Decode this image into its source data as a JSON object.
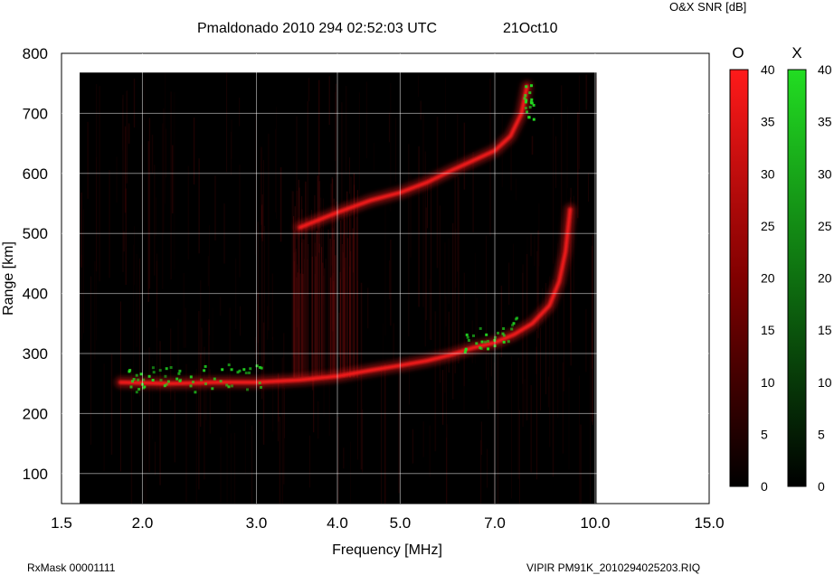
{
  "header": {
    "title": "Pmaldonado 2010 294 02:52:03 UTC",
    "date": "21Oct10",
    "snr_label": "O&X SNR [dB]"
  },
  "footer": {
    "left": "RxMask 00001111",
    "right": "VIPIR  PM91K_2010294025203.RIQ"
  },
  "colors": {
    "o_mode": "#ff1a1a",
    "x_mode": "#22dd22",
    "background": "#000000",
    "grid": "#ffffff"
  },
  "chart_data": {
    "type": "heatmap",
    "title": "Pmaldonado 2010 294 02:52:03 UTC",
    "xlabel": "Frequency [MHz]",
    "ylabel": "Range [km]",
    "x_scale": "log",
    "xlim": [
      1.5,
      15.0
    ],
    "ylim": [
      50,
      800
    ],
    "x_ticks": [
      1.5,
      2.0,
      3.0,
      4.0,
      5.0,
      7.0,
      10.0,
      15.0
    ],
    "x_tick_labels": [
      "1.5",
      "2.0",
      "3.0",
      "4.0",
      "5.0",
      "7.0",
      "10.0",
      "15.0"
    ],
    "y_ticks": [
      100,
      200,
      300,
      400,
      500,
      600,
      700,
      800
    ],
    "y_tick_labels": [
      "100",
      "200",
      "300",
      "400",
      "500",
      "600",
      "700",
      "800"
    ],
    "grid": true,
    "data_extent": {
      "freq": [
        1.6,
        10.05
      ],
      "range": [
        50,
        768
      ]
    },
    "colorbars": [
      {
        "name": "O",
        "color": "#ff1a1a",
        "range": [
          0,
          40
        ],
        "ticks": [
          0,
          5,
          10,
          15,
          20,
          25,
          30,
          35,
          40
        ]
      },
      {
        "name": "X",
        "color": "#22dd22",
        "range": [
          0,
          40
        ],
        "ticks": [
          0,
          5,
          10,
          15,
          20,
          25,
          30,
          35,
          40
        ]
      }
    ],
    "series": [
      {
        "mode": "O",
        "trace": "E/F1 trace",
        "points": [
          [
            1.85,
            252
          ],
          [
            2.2,
            250
          ],
          [
            2.6,
            252
          ],
          [
            3.0,
            252
          ],
          [
            3.5,
            256
          ],
          [
            4.0,
            262
          ],
          [
            4.5,
            272
          ],
          [
            5.0,
            280
          ],
          [
            5.5,
            288
          ],
          [
            6.0,
            298
          ],
          [
            6.5,
            310
          ],
          [
            7.0,
            318
          ],
          [
            7.5,
            332
          ],
          [
            8.0,
            350
          ],
          [
            8.5,
            380
          ],
          [
            8.8,
            420
          ],
          [
            9.0,
            470
          ],
          [
            9.15,
            540
          ]
        ]
      },
      {
        "mode": "O",
        "trace": "F2 trace",
        "points": [
          [
            3.5,
            510
          ],
          [
            4.0,
            535
          ],
          [
            4.5,
            555
          ],
          [
            5.0,
            568
          ],
          [
            5.5,
            585
          ],
          [
            6.0,
            605
          ],
          [
            6.5,
            622
          ],
          [
            7.0,
            638
          ],
          [
            7.4,
            662
          ],
          [
            7.7,
            700
          ],
          [
            7.85,
            745
          ]
        ]
      }
    ]
  }
}
